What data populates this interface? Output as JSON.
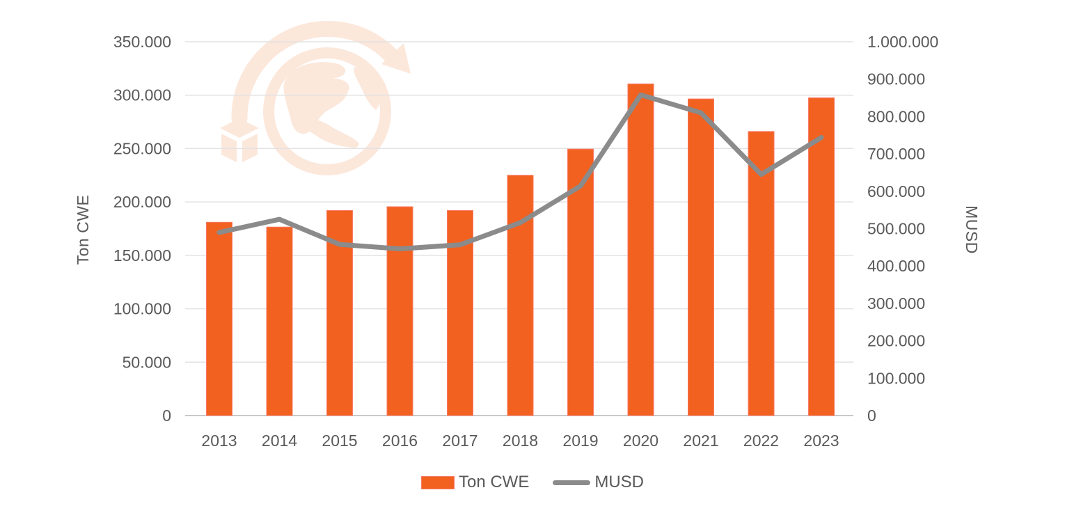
{
  "page": {
    "background": "#FFFFFF"
  },
  "colors": {
    "bar": "#F2611F",
    "bar_edge": "#F97A66",
    "line": "#8B8B8B",
    "text": "#595959",
    "gridline": "#E2E2E2",
    "axis_line": "#C9C9C9",
    "watermark": "#FCE7DB"
  },
  "icons": {
    "watermark": "globe-with-circular-arrow-and-shipping-box-icon"
  },
  "chart_data": {
    "type": "combo-bar-line",
    "grid": true,
    "legend_position": "bottom",
    "categories": [
      "2013",
      "2014",
      "2015",
      "2016",
      "2017",
      "2018",
      "2019",
      "2020",
      "2021",
      "2022",
      "2023"
    ],
    "series": [
      {
        "name": "Ton CWE",
        "type": "bar",
        "axis": "left",
        "color": "#F2611F",
        "values": [
          181000,
          176500,
          192000,
          195500,
          192000,
          225000,
          249500,
          310500,
          296500,
          266000,
          297500
        ]
      },
      {
        "name": "MUSD",
        "type": "line",
        "axis": "right",
        "color": "#8B8B8B",
        "values": [
          490000,
          525000,
          458000,
          446000,
          457000,
          516000,
          614000,
          858000,
          810000,
          645000,
          744000
        ]
      }
    ],
    "left_axis": {
      "title": "Ton CWE",
      "max": 350000,
      "min": 0,
      "ticks": [
        {
          "label": "350.000",
          "value": 350000
        },
        {
          "label": "300.000",
          "value": 300000
        },
        {
          "label": "250.000",
          "value": 250000
        },
        {
          "label": "200.000",
          "value": 200000
        },
        {
          "label": "150.000",
          "value": 150000
        },
        {
          "label": "100.000",
          "value": 100000
        },
        {
          "label": "50.000",
          "value": 50000
        },
        {
          "label": "0",
          "value": 0
        }
      ]
    },
    "right_axis": {
      "title": "MUSD",
      "max": 1000000,
      "min": 0,
      "ticks": [
        {
          "label": "1.000.000",
          "value": 1000000
        },
        {
          "label": "900.000",
          "value": 900000
        },
        {
          "label": "800.000",
          "value": 800000
        },
        {
          "label": "700.000",
          "value": 700000
        },
        {
          "label": "600.000",
          "value": 600000
        },
        {
          "label": "500.000",
          "value": 500000
        },
        {
          "label": "400.000",
          "value": 400000
        },
        {
          "label": "300.000",
          "value": 300000
        },
        {
          "label": "200.000",
          "value": 200000
        },
        {
          "label": "100.000",
          "value": 100000
        },
        {
          "label": "0",
          "value": 0
        }
      ]
    }
  }
}
